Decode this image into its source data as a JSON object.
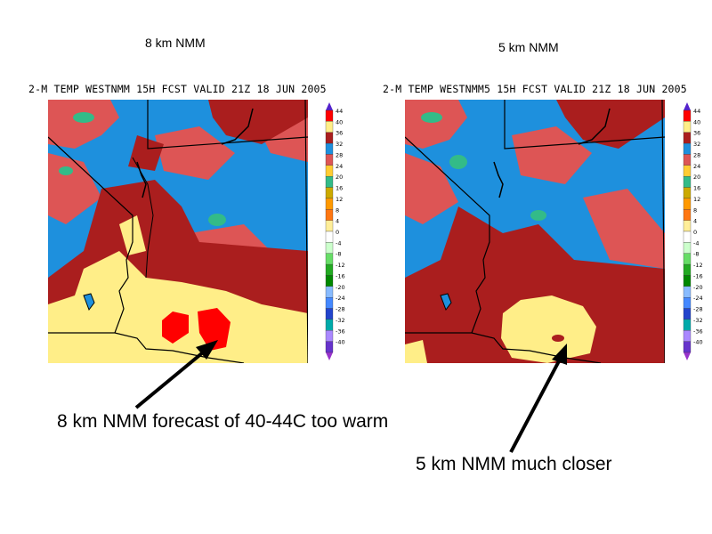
{
  "panels": [
    {
      "title": "8 km NMM",
      "header": "2-M TEMP WESTNMM 15H FCST VALID 21Z 18 JUN 2005"
    },
    {
      "title": "5 km NMM",
      "header": "2-M TEMP WESTNMM5 15H FCST VALID 21Z 18 JUN 2005"
    }
  ],
  "colorbar": {
    "levels": [
      "44",
      "40",
      "36",
      "32",
      "28",
      "24",
      "20",
      "16",
      "12",
      "8",
      "4",
      "0",
      "-4",
      "-8",
      "-12",
      "-16",
      "-20",
      "-24",
      "-28",
      "-32",
      "-36",
      "-40"
    ],
    "colors": [
      "#ff0000",
      "#ffee88",
      "#aa1e1e",
      "#1e90dd",
      "#dd5555",
      "#ffcc33",
      "#33bb88",
      "#ccaa00",
      "#ff9900",
      "#ff7711",
      "#ffee99",
      "#ffffff",
      "#ccffcc",
      "#66dd66",
      "#22aa22",
      "#008800",
      "#88bbff",
      "#4488ff",
      "#2244cc",
      "#00aaaa",
      "#aa88ff",
      "#6633cc"
    ],
    "top_arrow_color": "#5522cc",
    "bottom_arrow_color": "#9933cc"
  },
  "map_colors": {
    "cold": "#1e90dd",
    "cool": "#dd5555",
    "warm": "#aa1e1e",
    "hot": "#ffee88",
    "extreme": "#ff0000",
    "green": "#33bb88",
    "yellow": "#ccaa00"
  },
  "annotations": {
    "left": "8 km NMM forecast of 40-44C too warm",
    "right": "5 km NMM much closer"
  }
}
